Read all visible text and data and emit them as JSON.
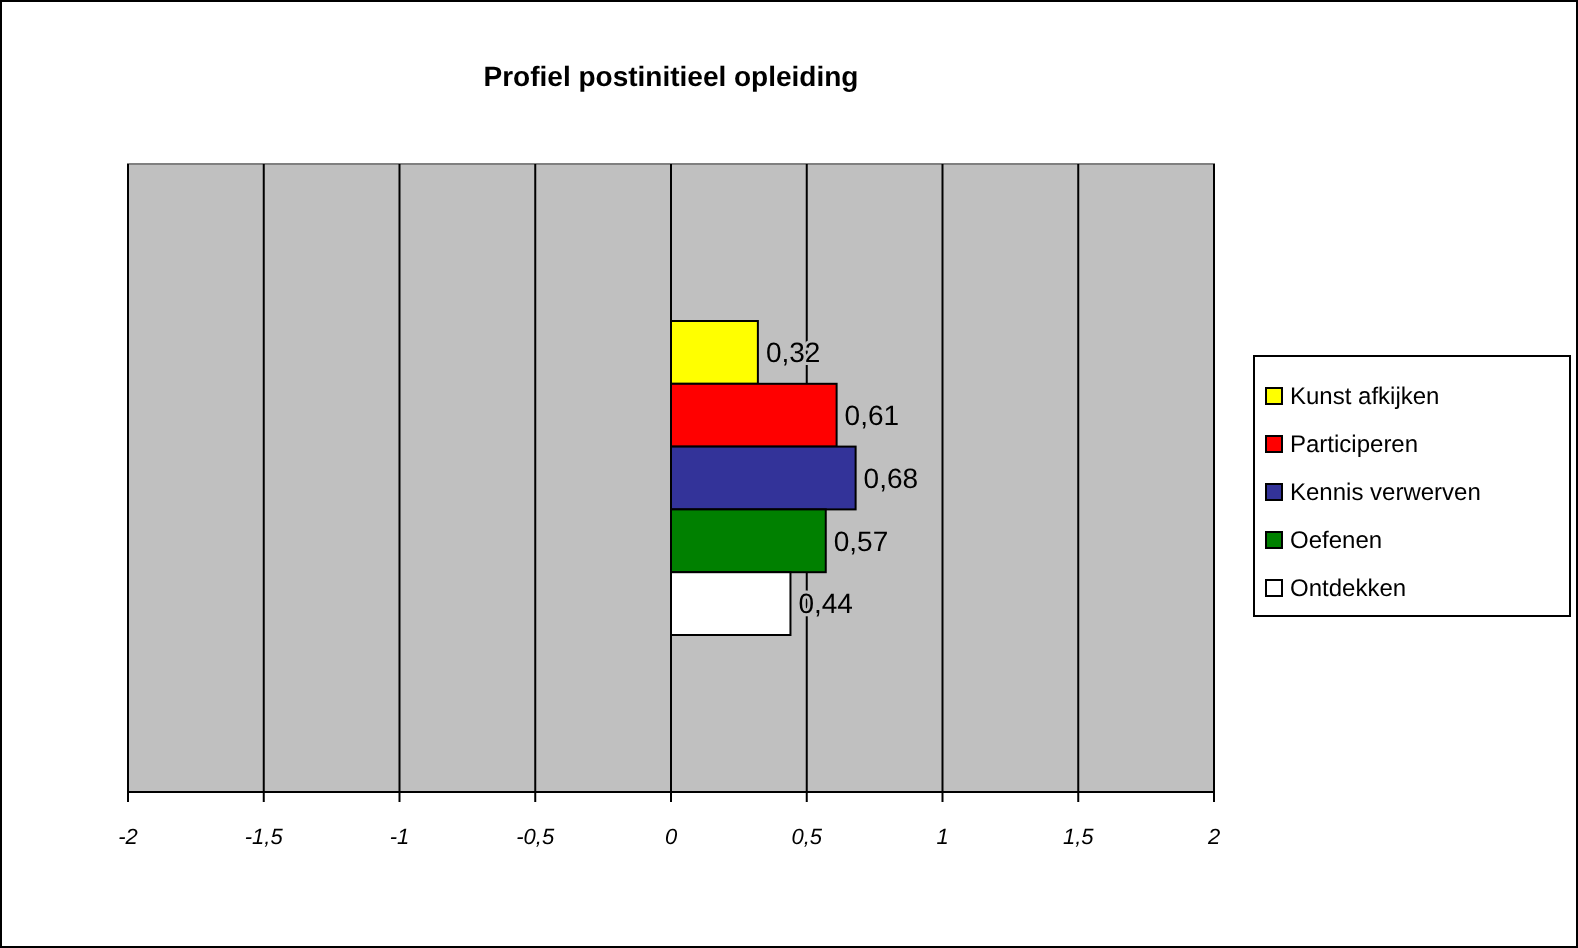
{
  "chart_data": {
    "type": "bar",
    "title": "Profiel postinitieel opleiding",
    "orientation": "horizontal",
    "categories": [
      null
    ],
    "series": [
      {
        "name": "Kunst afkijken",
        "color": "#ffff00",
        "values": [
          0.32
        ],
        "value_labels": [
          "0,32"
        ]
      },
      {
        "name": "Participeren",
        "color": "#ff0000",
        "values": [
          0.61
        ],
        "value_labels": [
          "0,61"
        ]
      },
      {
        "name": "Kennis verwerven",
        "color": "#333399",
        "values": [
          0.68
        ],
        "value_labels": [
          "0,68"
        ]
      },
      {
        "name": "Oefenen",
        "color": "#008000",
        "values": [
          0.57
        ],
        "value_labels": [
          "0,57"
        ]
      },
      {
        "name": "Ontdekken",
        "color": "#ffffff",
        "values": [
          0.44
        ],
        "value_labels": [
          "0,44"
        ]
      }
    ],
    "xlim": [
      -2,
      2
    ],
    "xticks": [
      {
        "value": -2,
        "label": "-2"
      },
      {
        "value": -1.5,
        "label": "-1,5"
      },
      {
        "value": -1,
        "label": "-1"
      },
      {
        "value": -0.5,
        "label": "-0,5"
      },
      {
        "value": 0,
        "label": "0"
      },
      {
        "value": 0.5,
        "label": "0,5"
      },
      {
        "value": 1,
        "label": "1"
      },
      {
        "value": 1.5,
        "label": "1,5"
      },
      {
        "value": 2,
        "label": "2"
      }
    ],
    "grid": "x",
    "legend": "right"
  }
}
